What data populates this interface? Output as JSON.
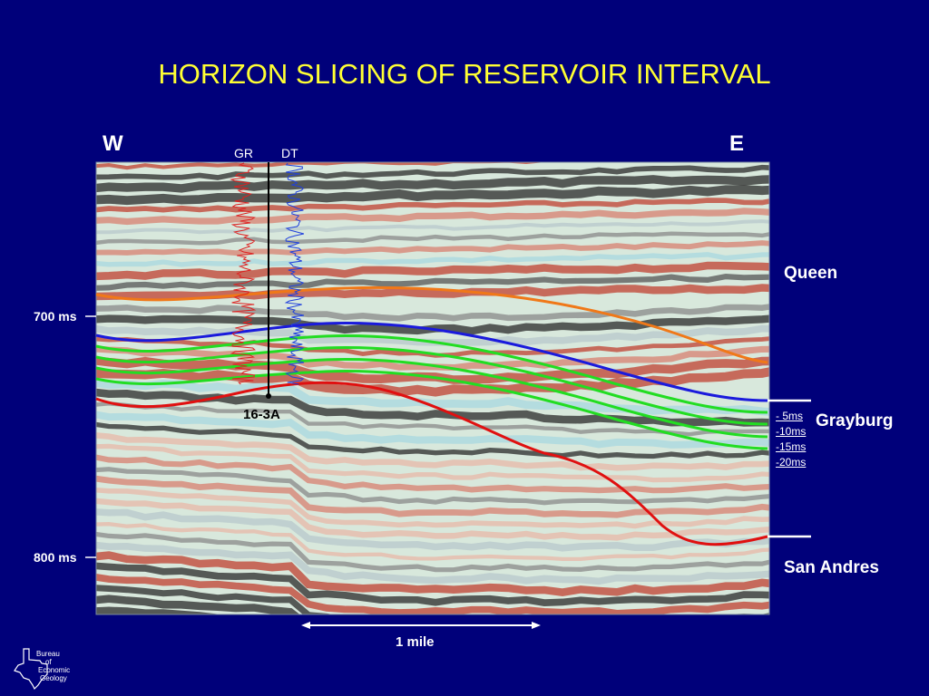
{
  "title": "HORIZON SLICING OF RESERVOIR INTERVAL",
  "directions": {
    "west": "W",
    "east": "E"
  },
  "logs": {
    "gr": "GR",
    "dt": "DT"
  },
  "horizons": {
    "queen": "Queen",
    "grayburg": "Grayburg",
    "san_andres": "San Andres"
  },
  "time_markers": {
    "t700": "700 ms",
    "t800": "800 ms"
  },
  "slice_offsets": [
    "- 5ms",
    "-10ms",
    "-15ms",
    "-20ms"
  ],
  "well": {
    "name": "16-3A"
  },
  "scale_bar": {
    "label": "1 mile"
  },
  "logo": {
    "line1": "Bureau",
    "line2": "of",
    "line3": "Economic",
    "line4": "Geology"
  },
  "colors": {
    "background": "#00007a",
    "title": "#ffff33",
    "queen_horizon": "#f07818",
    "grayburg_horizon": "#1a1adc",
    "slice_lines": "#22dd22",
    "san_andres_horizon": "#e01010",
    "gr_log": "#dd2020",
    "dt_log": "#2040dd"
  }
}
